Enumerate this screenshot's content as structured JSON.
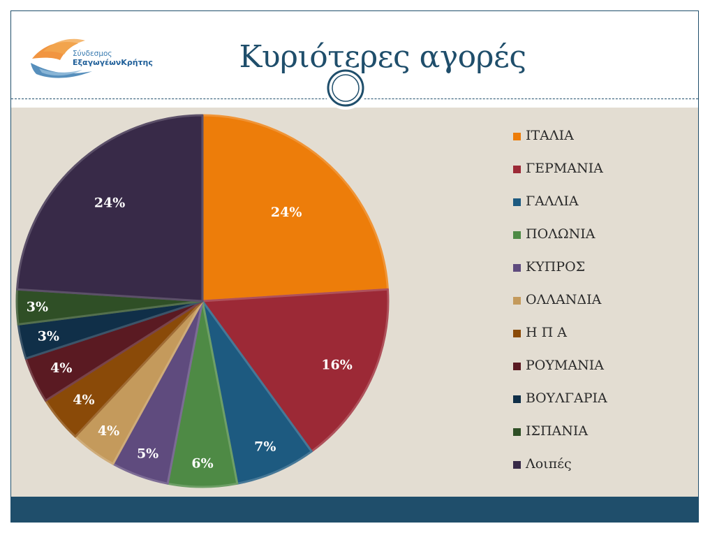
{
  "header": {
    "title": "Κυριότερες αγορές",
    "logo_line1": "Σύνδεσμος",
    "logo_line2": "ΕξαγωγέωνΚρήτης"
  },
  "colors": {
    "navy": "#1f4e6b",
    "background": "#e3ddd2",
    "footer": "#1f4e6b"
  },
  "chart_data": {
    "type": "pie",
    "title": "",
    "categories": [
      "ΙΤΑΛΙΑ",
      "ΓΕΡΜΑΝΙΑ",
      "ΓΑΛΛΙΑ",
      "ΠΟΛΩΝΙΑ",
      "ΚΥΠΡΟΣ",
      "ΟΛΛΑΝΔΙΑ",
      "Η Π Α",
      "ΡΟΥΜΑΝΙΑ",
      "ΒΟΥΛΓΑΡΙΑ",
      "ΙΣΠΑΝΙΑ",
      "Λοιπές"
    ],
    "values": [
      24,
      16,
      7,
      6,
      5,
      4,
      4,
      4,
      3,
      3,
      24
    ],
    "value_labels": [
      "24%",
      "16%",
      "7%",
      "6%",
      "5%",
      "4%",
      "4%",
      "4%",
      "3%",
      "3%",
      "24%"
    ],
    "colors": [
      "#ed7d0a",
      "#9c2936",
      "#1d5a80",
      "#4e8a45",
      "#5f4b7e",
      "#c49a5c",
      "#8a4a08",
      "#5a1a22",
      "#102f48",
      "#2f4f26",
      "#382a48"
    ],
    "legend_position": "right"
  }
}
